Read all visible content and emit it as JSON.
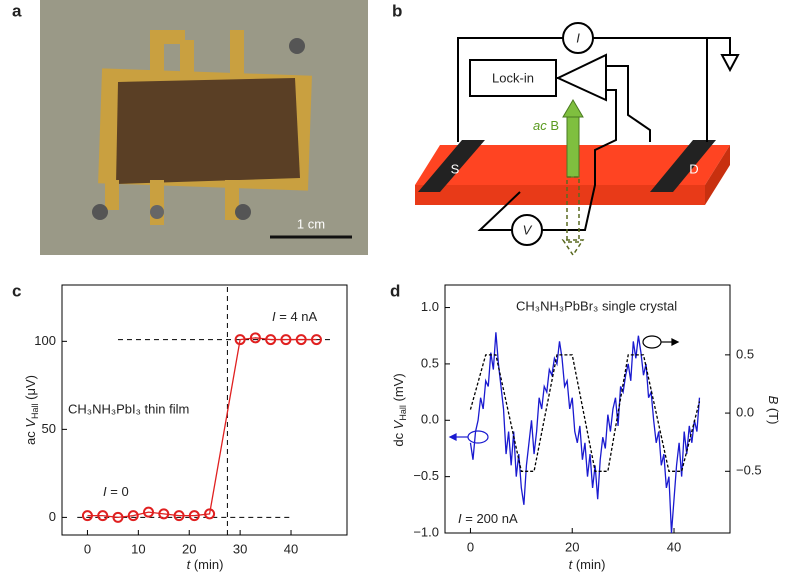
{
  "panels": {
    "a": {
      "label": "a",
      "scale_bar": "1 cm"
    },
    "b": {
      "label": "b",
      "current_meter": "I",
      "lock_in": "Lock-in",
      "field": [
        "ac",
        " B"
      ],
      "source": "S",
      "drain": "D",
      "voltmeter": "V"
    }
  },
  "chart_data": [
    {
      "type": "line",
      "panel_label": "c",
      "annotation": "CH₃NH₃PbI₃ thin film",
      "current_high": [
        "I",
        " = 4 nA"
      ],
      "current_low": [
        "I",
        " = 0"
      ],
      "xlabel": [
        "t",
        " (min)"
      ],
      "ylabel": [
        "ac ",
        "V",
        "Hall",
        " (μV)"
      ],
      "xlim": [
        -5,
        51
      ],
      "ylim": [
        -10,
        132
      ],
      "xticks": [
        0,
        10,
        20,
        30,
        40
      ],
      "yticks": [
        0,
        50,
        100
      ],
      "ref_lines": [
        {
          "y": 0,
          "x": [
            -2,
            40
          ]
        },
        {
          "y": 101,
          "x": [
            6,
            48
          ]
        },
        {
          "x": 27.5,
          "y": [
            -10,
            132
          ]
        }
      ],
      "series": [
        {
          "color": "#e02020",
          "marker": "circle",
          "x": [
            0,
            3,
            6,
            9,
            12,
            15,
            18,
            21,
            24,
            30,
            33,
            36,
            39,
            42,
            45
          ],
          "values": [
            1,
            1,
            0,
            1,
            3,
            2,
            1,
            1,
            2,
            101,
            102,
            101,
            101,
            101,
            101
          ]
        }
      ]
    },
    {
      "type": "line",
      "panel_label": "d",
      "annotation": "CH₃NH₃PbBr₃ single crystal",
      "current": [
        "I",
        " = 200 nA"
      ],
      "xlabel": [
        "t",
        " (min)"
      ],
      "ylabel": [
        "dc ",
        "V",
        "Hall",
        " (mV)"
      ],
      "y2label": [
        "B",
        " (T)"
      ],
      "xlim": [
        -5,
        51
      ],
      "ylim": [
        -1.0,
        1.2
      ],
      "y2lim": [
        -1.03,
        1.1
      ],
      "xticks": [
        0,
        20,
        40
      ],
      "yticks": [
        {
          "value": 1,
          "label": "1.0"
        },
        0.5,
        {
          "value": 0,
          "label": "0.0"
        },
        {
          "value": -0.5,
          "label": "−0.5"
        },
        {
          "value": -1,
          "label": "−1.0"
        }
      ],
      "y2ticks": [
        0.5,
        {
          "value": 0,
          "label": "0.0"
        },
        {
          "value": -0.5,
          "label": "−0.5"
        }
      ],
      "series": [
        {
          "color": "#1a1ad0",
          "x": [
            0,
            0.5,
            1,
            1.5,
            2,
            2.5,
            3,
            3.5,
            4,
            4.5,
            5,
            5.5,
            6,
            6.5,
            7,
            7.5,
            8,
            8.5,
            9,
            9.5,
            10,
            10.5,
            11,
            11.5,
            12,
            12.5,
            13,
            13.5,
            14,
            14.5,
            15,
            15.5,
            16,
            16.5,
            17,
            17.5,
            18,
            18.5,
            19,
            19.5,
            20,
            20.5,
            21,
            21.5,
            22,
            22.5,
            23,
            23.5,
            24,
            24.5,
            25,
            25.5,
            26,
            26.5,
            27,
            27.5,
            28,
            28.5,
            29,
            29.5,
            30,
            30.5,
            31,
            31.5,
            32,
            32.5,
            33,
            33.5,
            34,
            34.5,
            35,
            35.5,
            36,
            36.5,
            37,
            37.5,
            38,
            38.5,
            39,
            39.5,
            40,
            40.5,
            41,
            41.5,
            42,
            42.5,
            43,
            43.5,
            44,
            44.5,
            45
          ],
          "values": [
            -0.2,
            -0.35,
            -0.1,
            0.0,
            0.2,
            0.1,
            0.35,
            0.3,
            0.6,
            0.45,
            0.78,
            0.5,
            0.3,
            0.1,
            -0.3,
            -0.1,
            -0.4,
            -0.1,
            -0.5,
            -0.3,
            -0.6,
            -0.75,
            -0.4,
            -0.2,
            0.0,
            -0.3,
            -0.1,
            0.2,
            0.1,
            0.3,
            0.25,
            0.45,
            0.4,
            0.55,
            0.5,
            0.7,
            0.55,
            0.3,
            0.35,
            0.1,
            0.2,
            -0.1,
            -0.2,
            -0.05,
            -0.35,
            -0.2,
            -0.5,
            -0.3,
            -0.6,
            -0.4,
            -0.7,
            -0.35,
            -0.15,
            -0.25,
            0.05,
            -0.1,
            0.1,
            0.2,
            -0.05,
            0.3,
            0.25,
            0.4,
            0.5,
            0.35,
            0.7,
            0.55,
            0.75,
            0.6,
            0.4,
            0.5,
            0.2,
            0.25,
            0.0,
            -0.2,
            -0.1,
            -0.4,
            -0.3,
            -0.6,
            -0.5,
            -1.0,
            -0.7,
            -0.4,
            -0.2,
            -0.5,
            -0.1,
            -0.3,
            -0.05,
            -0.2,
            0.0,
            -0.1,
            0.2
          ]
        },
        {
          "color": "#000000",
          "axis": "y2",
          "linestyle": "dashed",
          "x": [
            0,
            3,
            5,
            10,
            12.5,
            17,
            20,
            24.5,
            27,
            31,
            34,
            39,
            41.5,
            45
          ],
          "values": [
            0.03,
            0.5,
            0.5,
            -0.5,
            -0.5,
            0.5,
            0.5,
            -0.5,
            -0.5,
            0.5,
            0.5,
            -0.5,
            -0.5,
            0.1
          ]
        }
      ]
    }
  ]
}
